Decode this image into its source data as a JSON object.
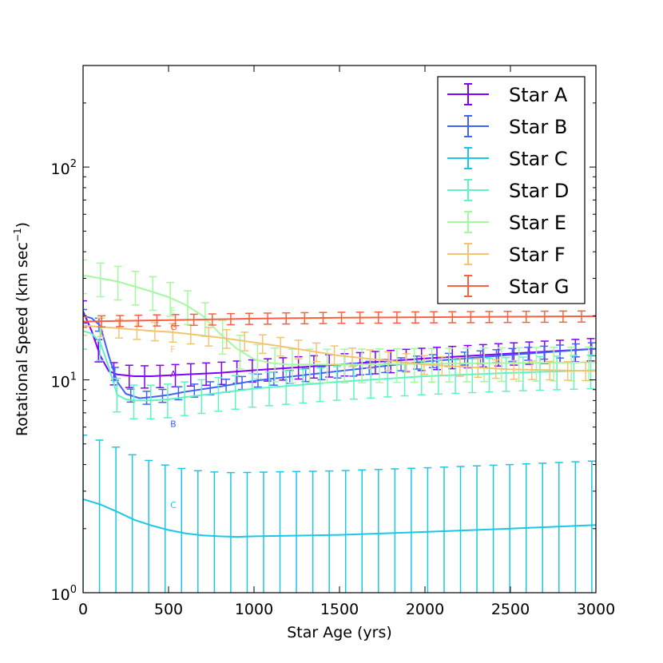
{
  "chart_data": {
    "type": "line",
    "title": "",
    "xlabel": "Star Age (yrs)",
    "ylabel": "Rotational Speed (km sec",
    "ylabel_superscript": "−1",
    "ylabel_suffix": ")",
    "xlim": [
      0,
      3000
    ],
    "ylim": [
      1,
      300
    ],
    "yscale": "log",
    "grid": false,
    "legend_position": "top-right",
    "x_tick_labels": [
      "0",
      "500",
      "1000",
      "1500",
      "2000",
      "2500",
      "3000"
    ],
    "x_ticks": [
      0,
      500,
      1000,
      1500,
      2000,
      2500,
      3000
    ],
    "y_tick_values": [
      1,
      10,
      100
    ],
    "y_tick_labels": [
      {
        "base": "10",
        "exp": "0"
      },
      {
        "base": "10",
        "exp": "1"
      },
      {
        "base": "10",
        "exp": "2"
      }
    ],
    "series": [
      {
        "name": "Star A",
        "tag": "A",
        "color": "#8000ff",
        "tag_at": [
          510,
          10.3
        ],
        "x": [
          0,
          50,
          100,
          150,
          200,
          300,
          400,
          500,
          600,
          800,
          1000,
          1500,
          2000,
          2500,
          3000
        ],
        "values": [
          21,
          17,
          13,
          11,
          10.6,
          10.4,
          10.4,
          10.5,
          10.6,
          10.8,
          11.1,
          11.8,
          12.6,
          13.3,
          14
        ],
        "err": [
          0.12,
          0.12,
          0.12,
          0.12,
          0.12,
          0.12,
          0.12,
          0.12,
          0.12,
          0.12,
          0.12,
          0.12,
          0.12,
          0.12,
          0.12
        ]
      },
      {
        "name": "Star B",
        "tag": "B",
        "color": "#4062fa",
        "tag_at": [
          510,
          6.0
        ],
        "x": [
          0,
          50,
          100,
          150,
          200,
          250,
          330,
          400,
          500,
          600,
          800,
          1000,
          1500,
          2000,
          2500,
          3000
        ],
        "values": [
          20,
          19.5,
          18,
          13,
          9.8,
          8.6,
          8.2,
          8.3,
          8.5,
          8.8,
          9.3,
          9.9,
          11,
          12.2,
          13.1,
          14
        ],
        "err": [
          0.07,
          0.07,
          0.07,
          0.07,
          0.07,
          0.07,
          0.07,
          0.07,
          0.07,
          0.07,
          0.07,
          0.07,
          0.07,
          0.07,
          0.07,
          0.07
        ]
      },
      {
        "name": "Star C",
        "tag": "C",
        "color": "#1ac7e4",
        "tag_at": [
          510,
          2.5
        ],
        "x": [
          0,
          100,
          200,
          300,
          400,
          500,
          600,
          700,
          800,
          900,
          1000,
          1500,
          2000,
          2500,
          3000
        ],
        "values": [
          2.75,
          2.6,
          2.4,
          2.2,
          2.07,
          1.97,
          1.9,
          1.86,
          1.84,
          1.83,
          1.84,
          1.87,
          1.93,
          2.0,
          2.08
        ],
        "err": [
          1.0,
          1.0,
          1.0,
          1.0,
          1.0,
          1.0,
          1.0,
          1.0,
          1.0,
          1.0,
          1.0,
          1.0,
          1.0,
          1.0,
          1.0
        ]
      },
      {
        "name": "Star D",
        "tag": "D",
        "color": "#5df3c2",
        "tag_at": null,
        "x": [
          0,
          50,
          100,
          150,
          200,
          250,
          300,
          400,
          500,
          600,
          800,
          1000,
          1500,
          2000,
          2500,
          3000
        ],
        "values": [
          17,
          16.5,
          15,
          11.5,
          8.5,
          8.1,
          8.0,
          8.0,
          8.1,
          8.3,
          8.7,
          9.1,
          9.8,
          10.4,
          10.8,
          11.1
        ],
        "err": [
          0.18,
          0.18,
          0.18,
          0.18,
          0.18,
          0.18,
          0.18,
          0.18,
          0.18,
          0.18,
          0.18,
          0.18,
          0.18,
          0.18,
          0.18,
          0.18
        ]
      },
      {
        "name": "Star E",
        "tag": "E",
        "color": "#a4f89f",
        "tag_at": [
          510,
          20.5
        ],
        "x": [
          0,
          100,
          200,
          300,
          400,
          500,
          600,
          700,
          800,
          900,
          1000,
          1100,
          1200,
          1500,
          2000,
          2500,
          3000
        ],
        "values": [
          31,
          30,
          29,
          27.5,
          26,
          24.5,
          22.5,
          20,
          16.5,
          14,
          12.5,
          12,
          11.8,
          11.8,
          11.9,
          12.0,
          12.1
        ],
        "err": [
          0.18,
          0.18,
          0.18,
          0.18,
          0.18,
          0.18,
          0.18,
          0.18,
          0.18,
          0.18,
          0.18,
          0.18,
          0.18,
          0.18,
          0.18,
          0.18,
          0.18
        ]
      },
      {
        "name": "Star F",
        "tag": "F",
        "color": "#f2c46f",
        "tag_at": [
          510,
          13.5
        ],
        "x": [
          0,
          200,
          400,
          500,
          600,
          800,
          1000,
          1200,
          1500,
          2000,
          2500,
          3000
        ],
        "values": [
          18,
          17.5,
          17,
          16.8,
          16.5,
          15.8,
          15,
          14.2,
          13,
          11.8,
          11.2,
          11.0
        ],
        "err": [
          0.1,
          0.1,
          0.1,
          0.1,
          0.1,
          0.1,
          0.1,
          0.1,
          0.1,
          0.1,
          0.1,
          0.1
        ]
      },
      {
        "name": "Star G",
        "tag": "G",
        "color": "#fa6040",
        "tag_at": [
          510,
          17.2
        ],
        "x": [
          0,
          500,
          1000,
          1500,
          2000,
          2500,
          3000
        ],
        "values": [
          18.8,
          19.1,
          19.4,
          19.6,
          19.7,
          19.8,
          19.9
        ],
        "err": [
          0.06,
          0.06,
          0.06,
          0.06,
          0.06,
          0.06,
          0.06
        ]
      }
    ]
  }
}
